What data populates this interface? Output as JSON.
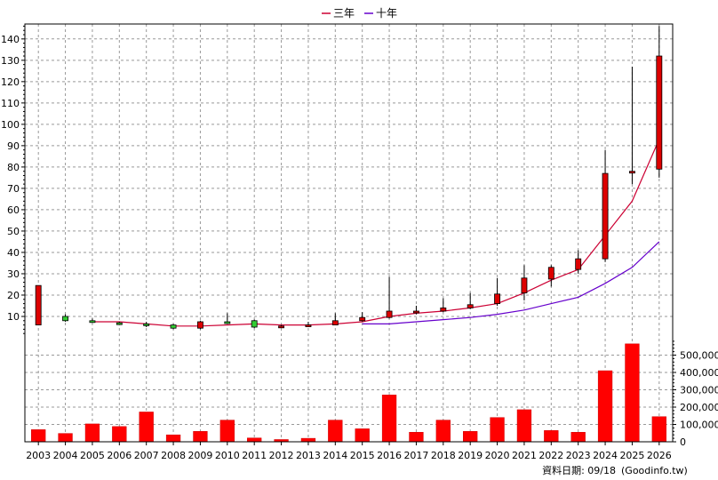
{
  "chart_data": {
    "type": "candlestick",
    "legend": [
      {
        "name": "三年",
        "color": "#cc0033"
      },
      {
        "name": "十年",
        "color": "#6600cc"
      }
    ],
    "legend_placement": "top-center",
    "grid": true,
    "x": [
      "2003",
      "2004",
      "2005",
      "2006",
      "2007",
      "2008",
      "2009",
      "2010",
      "2011",
      "2012",
      "2013",
      "2014",
      "2015",
      "2016",
      "2017",
      "2018",
      "2019",
      "2020",
      "2021",
      "2022",
      "2023",
      "2024",
      "2025",
      "2026"
    ],
    "price_axis": {
      "ylim": [
        0,
        147
      ],
      "ticks": [
        10,
        20,
        30,
        40,
        50,
        60,
        70,
        80,
        90,
        100,
        110,
        120,
        130,
        140
      ]
    },
    "volume_axis": {
      "ylim": [
        0,
        600000
      ],
      "ticks": [
        0,
        100000,
        200000,
        300000,
        400000,
        500000
      ],
      "tick_labels": [
        "0",
        "100,000",
        "200,000",
        "300,000",
        "400,000",
        "500,000"
      ]
    },
    "candles": [
      {
        "open": 6,
        "close": 24.5,
        "high": 24.5,
        "low": 6
      },
      {
        "open": 10,
        "close": 8,
        "high": 11,
        "low": 7.5
      },
      {
        "open": 8,
        "close": 7.5,
        "high": 9,
        "low": 7
      },
      {
        "open": 7,
        "close": 6.5,
        "high": 7.5,
        "low": 6
      },
      {
        "open": 6.5,
        "close": 6,
        "high": 7.5,
        "low": 5
      },
      {
        "open": 6,
        "close": 4.5,
        "high": 6.5,
        "low": 4
      },
      {
        "open": 4.5,
        "close": 7.5,
        "high": 8,
        "low": 4
      },
      {
        "open": 7.5,
        "close": 7,
        "high": 11.5,
        "low": 6.5
      },
      {
        "open": 8,
        "close": 5,
        "high": 8.5,
        "low": 4.5
      },
      {
        "open": 5,
        "close": 5.5,
        "high": 6,
        "low": 5
      },
      {
        "open": 5.5,
        "close": 6,
        "high": 7.5,
        "low": 5
      },
      {
        "open": 6,
        "close": 8,
        "high": 11.5,
        "low": 6
      },
      {
        "open": 8,
        "close": 9.5,
        "high": 12,
        "low": 7.5
      },
      {
        "open": 9.5,
        "close": 12.5,
        "high": 28.5,
        "low": 9
      },
      {
        "open": 12,
        "close": 12.5,
        "high": 15,
        "low": 11
      },
      {
        "open": 12.5,
        "close": 14,
        "high": 18.5,
        "low": 12
      },
      {
        "open": 14,
        "close": 15.5,
        "high": 21,
        "low": 13.5
      },
      {
        "open": 16,
        "close": 20.5,
        "high": 28,
        "low": 15
      },
      {
        "open": 21,
        "close": 28,
        "high": 34,
        "low": 17.5
      },
      {
        "open": 27.5,
        "close": 33,
        "high": 34,
        "low": 24
      },
      {
        "open": 32,
        "close": 37,
        "high": 41,
        "low": 30
      },
      {
        "open": 37,
        "close": 77,
        "high": 88,
        "low": 35.5
      },
      {
        "open": 78,
        "close": 78,
        "high": 127,
        "low": 72
      },
      {
        "open": 79,
        "close": 132,
        "high": 146,
        "low": 75
      }
    ],
    "ma_3y": [
      null,
      null,
      7.5,
      7.5,
      6.5,
      5.5,
      5.5,
      6,
      6.5,
      6,
      6,
      6.5,
      7.5,
      10,
      11.5,
      12.5,
      14,
      16,
      21,
      27,
      32,
      48,
      64,
      93
    ],
    "ma_10y": [
      null,
      null,
      null,
      null,
      null,
      null,
      null,
      null,
      null,
      null,
      null,
      null,
      6.5,
      6.5,
      7.5,
      8.5,
      9.5,
      11,
      13,
      16,
      19,
      25.5,
      33,
      45
    ],
    "volume": [
      70000,
      48000,
      103000,
      88000,
      172000,
      40000,
      60000,
      125000,
      22000,
      13000,
      20000,
      125000,
      75000,
      270000,
      55000,
      125000,
      60000,
      140000,
      185000,
      65000,
      55000,
      410000,
      565000,
      145000
    ]
  },
  "footer": {
    "date_label": "資料日期: 09/18",
    "source": "(Goodinfo.tw)"
  }
}
